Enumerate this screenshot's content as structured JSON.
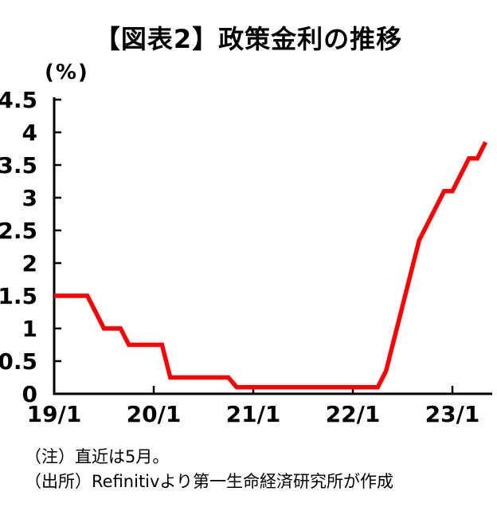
{
  "title": "【図表2】政策金利の推移",
  "y_axis_unit": "(%)",
  "notes": {
    "note": "（注）直近は5月。",
    "source": "（出所）Refinitivより第一生命経済研究所が作成"
  },
  "chart_data": {
    "type": "line",
    "title": "【図表2】政策金利の推移",
    "ylabel": "(%)",
    "xlabel": "",
    "x_frequency": "monthly",
    "x_start": "2019-01",
    "x_end": "2023-05",
    "x_tick_labels": [
      "19/1",
      "20/1",
      "21/1",
      "22/1",
      "23/1"
    ],
    "x_tick_month_indices": [
      0,
      12,
      24,
      36,
      48
    ],
    "y_ticks": [
      0,
      0.5,
      1,
      1.5,
      2,
      2.5,
      3,
      3.5,
      4,
      4.5
    ],
    "ylim": [
      0,
      4.5
    ],
    "grid": false,
    "legend": false,
    "line_color": "#FF0000",
    "series": [
      {
        "name": "政策金利",
        "values": [
          1.5,
          1.5,
          1.5,
          1.5,
          1.5,
          1.25,
          1.0,
          1.0,
          1.0,
          0.75,
          0.75,
          0.75,
          0.75,
          0.75,
          0.25,
          0.25,
          0.25,
          0.25,
          0.25,
          0.25,
          0.25,
          0.25,
          0.1,
          0.1,
          0.1,
          0.1,
          0.1,
          0.1,
          0.1,
          0.1,
          0.1,
          0.1,
          0.1,
          0.1,
          0.1,
          0.1,
          0.1,
          0.1,
          0.1,
          0.1,
          0.35,
          0.85,
          1.35,
          1.85,
          2.35,
          2.6,
          2.85,
          3.1,
          3.1,
          3.35,
          3.6,
          3.6,
          3.85
        ]
      }
    ]
  }
}
